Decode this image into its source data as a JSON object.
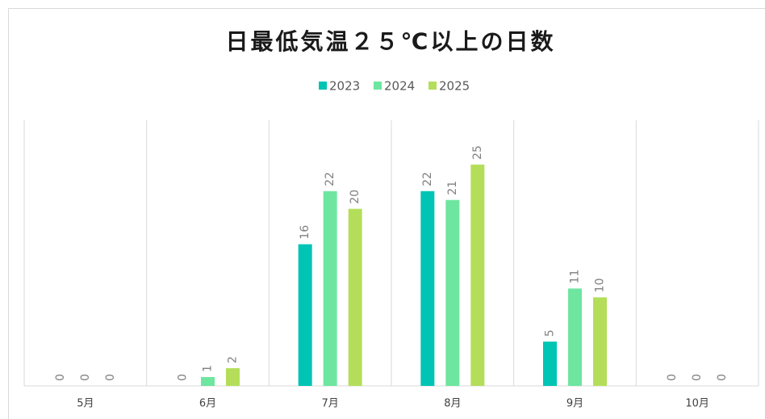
{
  "chart_data": {
    "type": "bar",
    "title": "日最低気温２５℃以上の日数",
    "categories": [
      "5月",
      "6月",
      "7月",
      "8月",
      "9月",
      "10月"
    ],
    "series": [
      {
        "name": "2023",
        "color": "#00c4b4",
        "values": [
          0,
          0,
          16,
          22,
          5,
          0
        ]
      },
      {
        "name": "2024",
        "color": "#6ee6a0",
        "values": [
          0,
          1,
          22,
          21,
          11,
          0
        ]
      },
      {
        "name": "2025",
        "color": "#b4de5a",
        "values": [
          0,
          2,
          20,
          25,
          10,
          0
        ]
      }
    ],
    "ylim": [
      0,
      30
    ],
    "legend": "top"
  }
}
